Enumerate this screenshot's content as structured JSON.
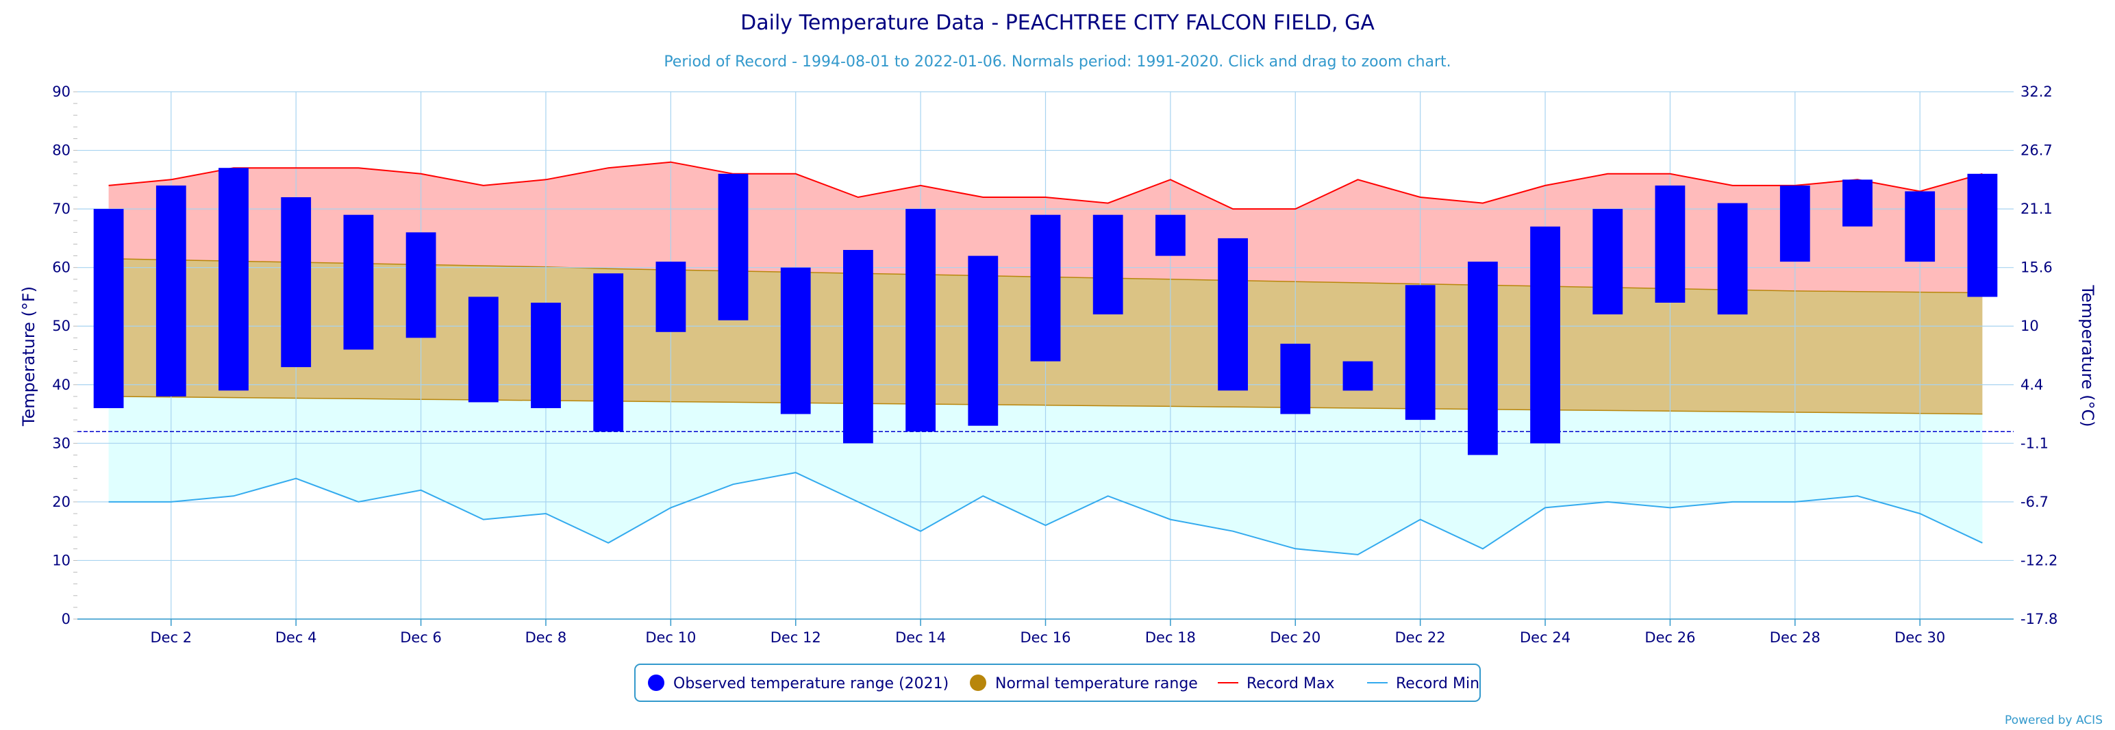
{
  "chart": {
    "title": "Daily Temperature Data - PEACHTREE CITY FALCON FIELD, GA",
    "subtitle": "Period of Record - 1994-08-01 to 2022-01-06. Normals period: 1991-2020. Click and drag to zoom chart.",
    "credits": "Powered by ACIS"
  },
  "legend": [
    {
      "label": "Observed temperature range (2021)",
      "symbol": "dot",
      "color": "#0000ff"
    },
    {
      "label": "Normal temperature range",
      "symbol": "dot",
      "color": "#b8860b"
    },
    {
      "label": "Record Max",
      "symbol": "line",
      "color": "#ff0000"
    },
    {
      "label": "Record Min",
      "symbol": "line",
      "color": "#33aaee"
    }
  ],
  "chart_data": {
    "type": "bar",
    "title": "Daily Temperature Data - PEACHTREE CITY FALCON FIELD, GA",
    "subtitle": "Period of Record - 1994-08-01 to 2022-01-06. Normals period: 1991-2020. Click and drag to zoom chart.",
    "ylabel": "Temperature (°F)",
    "y2label": "Temperature (°C)",
    "ylim": [
      0,
      90
    ],
    "yticks": [
      0,
      10,
      20,
      30,
      40,
      50,
      60,
      70,
      80,
      90
    ],
    "y2ticks": [
      "32.2",
      "26.7",
      "21.1",
      "15.6",
      "10",
      "4.4",
      "-1.1",
      "-6.7",
      "-12.2",
      "-17.8"
    ],
    "x": [
      1,
      2,
      3,
      4,
      5,
      6,
      7,
      8,
      9,
      10,
      11,
      12,
      13,
      14,
      15,
      16,
      17,
      18,
      19,
      20,
      21,
      22,
      23,
      24,
      25,
      26,
      27,
      28,
      29,
      30,
      31
    ],
    "xlim": [
      0.5,
      31.5
    ],
    "xtick_values": [
      2,
      4,
      6,
      8,
      10,
      12,
      14,
      16,
      18,
      20,
      22,
      24,
      26,
      28,
      30
    ],
    "xtick_labels": [
      "Dec 2",
      "Dec 4",
      "Dec 6",
      "Dec 8",
      "Dec 10",
      "Dec 12",
      "Dec 14",
      "Dec 16",
      "Dec 18",
      "Dec 20",
      "Dec 22",
      "Dec 24",
      "Dec 26",
      "Dec 28",
      "Dec 30"
    ],
    "freezing_line": 32,
    "grid": true,
    "legend_position": "bottom-center",
    "series": [
      {
        "name": "Observed temperature range (2021)",
        "type": "columnrange",
        "color": "#0000ff",
        "low": [
          36,
          38,
          39,
          43,
          46,
          48,
          37,
          36,
          32,
          49,
          51,
          35,
          30,
          32,
          33,
          44,
          52,
          62,
          39,
          35,
          39,
          34,
          28,
          30,
          52,
          54,
          52,
          61,
          67,
          61,
          55
        ],
        "high": [
          70,
          74,
          77,
          72,
          69,
          66,
          55,
          54,
          59,
          61,
          76,
          60,
          63,
          70,
          62,
          69,
          69,
          69,
          65,
          47,
          44,
          57,
          61,
          67,
          70,
          74,
          71,
          74,
          75,
          73,
          76
        ]
      },
      {
        "name": "Normal temperature range",
        "type": "arearange",
        "color": "#b8860b",
        "low": [
          38,
          37.9,
          37.8,
          37.7,
          37.6,
          37.5,
          37.4,
          37.3,
          37.2,
          37.1,
          37,
          36.9,
          36.8,
          36.7,
          36.6,
          36.5,
          36.4,
          36.3,
          36.2,
          36.1,
          36,
          35.9,
          35.8,
          35.7,
          35.6,
          35.5,
          35.4,
          35.3,
          35.2,
          35.1,
          35
        ],
        "high": [
          61.5,
          61.3,
          61.1,
          60.9,
          60.7,
          60.5,
          60.3,
          60.1,
          59.8,
          59.6,
          59.4,
          59.2,
          59,
          58.8,
          58.6,
          58.4,
          58.2,
          58,
          57.8,
          57.6,
          57.4,
          57.2,
          57,
          56.8,
          56.6,
          56.4,
          56.2,
          56,
          55.9,
          55.8,
          55.7
        ]
      },
      {
        "name": "Record Max",
        "type": "line",
        "color": "#ff0000",
        "values": [
          74,
          75,
          77,
          77,
          77,
          76,
          74,
          75,
          77,
          78,
          76,
          76,
          72,
          74,
          72,
          72,
          71,
          75,
          70,
          70,
          75,
          72,
          71,
          74,
          76,
          76,
          74,
          74,
          75,
          73,
          76
        ]
      },
      {
        "name": "Record Min",
        "type": "line",
        "color": "#33aaee",
        "values": [
          20,
          20,
          21,
          24,
          20,
          22,
          17,
          18,
          13,
          19,
          23,
          25,
          20,
          15,
          21,
          16,
          21,
          17,
          15,
          12,
          11,
          17,
          12,
          19,
          20,
          19,
          20,
          20,
          21,
          18,
          13
        ]
      }
    ]
  }
}
